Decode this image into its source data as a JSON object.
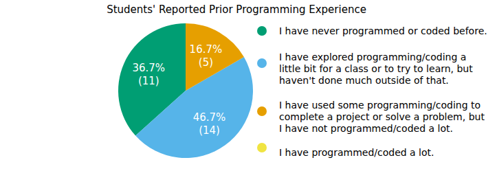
{
  "chart_data": {
    "type": "pie",
    "title": "Students' Reported Prior Programming Experience",
    "categories": [
      "I have never programmed or coded before.",
      "I have explored programming/coding a\nlittle bit for a class or to try to learn, but\nhaven't done much outside of that.",
      "I have used some programming/coding to\ncomplete a project or solve a problem, but\nI have not programmed/coded a lot.",
      "I have programmed/coded a lot."
    ],
    "values": [
      36.7,
      46.7,
      16.7,
      0
    ],
    "value_labels": [
      "36.7%",
      "46.7%",
      "16.7%",
      null
    ],
    "count_labels": [
      "(11)",
      "(14)",
      "(5)",
      null
    ],
    "colors": [
      "#009e73",
      "#56b4e9",
      "#e69f00",
      "#f0e442"
    ],
    "data_labels": true,
    "legend": "right"
  }
}
